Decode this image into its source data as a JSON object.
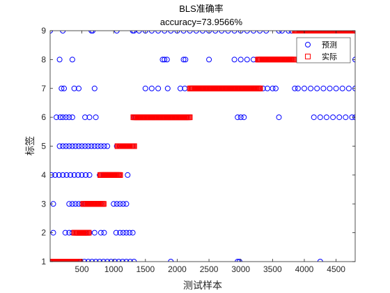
{
  "chart_data": {
    "type": "scatter",
    "title": "BLS准确率",
    "subtitle": "accuracy=73.9566%",
    "xlabel": "测试样本",
    "ylabel": "标签",
    "xlim": [
      1,
      4800
    ],
    "ylim": [
      1,
      9
    ],
    "xticks": [
      500,
      1000,
      1500,
      2000,
      2500,
      3000,
      3500,
      4000,
      4500
    ],
    "yticks": [
      1,
      2,
      3,
      4,
      5,
      6,
      7,
      8,
      9
    ],
    "legend": {
      "placement": "top-right",
      "entries": [
        "预测",
        "实际"
      ]
    },
    "grid": false,
    "series": [
      {
        "name": "预测",
        "marker": "circle",
        "color": "#0000ff",
        "points": [
          [
            1,
            9
          ],
          [
            200,
            9
          ],
          [
            650,
            9
          ],
          [
            670,
            9
          ],
          [
            1050,
            9
          ],
          [
            1300,
            9
          ],
          [
            1320,
            9
          ],
          [
            1400,
            9
          ],
          [
            1500,
            9
          ],
          [
            1600,
            9
          ],
          [
            1700,
            9
          ],
          [
            1800,
            9
          ],
          [
            1900,
            9
          ],
          [
            2000,
            9
          ],
          [
            2100,
            9
          ],
          [
            2200,
            9
          ],
          [
            2300,
            9
          ],
          [
            2400,
            9
          ],
          [
            2500,
            9
          ],
          [
            2600,
            9
          ],
          [
            2700,
            9
          ],
          [
            2800,
            9
          ],
          [
            2900,
            9
          ],
          [
            3000,
            9
          ],
          [
            3100,
            9
          ],
          [
            3200,
            9
          ],
          [
            3300,
            9
          ],
          [
            3400,
            9
          ],
          [
            3600,
            9
          ],
          [
            3650,
            9
          ],
          [
            3750,
            9
          ],
          [
            3800,
            9
          ],
          [
            4500,
            9
          ],
          [
            4600,
            9
          ],
          [
            4700,
            9
          ],
          [
            4800,
            9
          ],
          [
            150,
            8
          ],
          [
            350,
            8
          ],
          [
            1770,
            8
          ],
          [
            1800,
            8
          ],
          [
            1840,
            8
          ],
          [
            2100,
            8
          ],
          [
            2130,
            8
          ],
          [
            2500,
            8
          ],
          [
            2900,
            8
          ],
          [
            3000,
            8
          ],
          [
            3100,
            8
          ],
          [
            3200,
            8
          ],
          [
            3300,
            8
          ],
          [
            3750,
            8
          ],
          [
            3800,
            8
          ],
          [
            4450,
            8
          ],
          [
            4500,
            8
          ],
          [
            4550,
            8
          ],
          [
            4650,
            8
          ],
          [
            4800,
            8
          ],
          [
            180,
            7
          ],
          [
            220,
            7
          ],
          [
            380,
            7
          ],
          [
            450,
            7
          ],
          [
            700,
            7
          ],
          [
            1500,
            7
          ],
          [
            1600,
            7
          ],
          [
            1700,
            7
          ],
          [
            1850,
            7
          ],
          [
            2050,
            7
          ],
          [
            2120,
            7
          ],
          [
            3050,
            7
          ],
          [
            3200,
            7
          ],
          [
            3300,
            7
          ],
          [
            3350,
            7
          ],
          [
            3420,
            7
          ],
          [
            3500,
            7
          ],
          [
            3550,
            7
          ],
          [
            3850,
            7
          ],
          [
            3900,
            7
          ],
          [
            4000,
            7
          ],
          [
            4100,
            7
          ],
          [
            4200,
            7
          ],
          [
            4300,
            7
          ],
          [
            4400,
            7
          ],
          [
            4500,
            7
          ],
          [
            4600,
            7
          ],
          [
            4700,
            7
          ],
          [
            4800,
            7
          ],
          [
            100,
            6
          ],
          [
            160,
            6
          ],
          [
            200,
            6
          ],
          [
            250,
            6
          ],
          [
            300,
            6
          ],
          [
            350,
            6
          ],
          [
            550,
            6
          ],
          [
            620,
            6
          ],
          [
            720,
            6
          ],
          [
            1330,
            6
          ],
          [
            1350,
            6
          ],
          [
            1400,
            6
          ],
          [
            2150,
            6
          ],
          [
            2950,
            6
          ],
          [
            3000,
            6
          ],
          [
            3050,
            6
          ],
          [
            3600,
            6
          ],
          [
            4150,
            6
          ],
          [
            4250,
            6
          ],
          [
            4350,
            6
          ],
          [
            4450,
            6
          ],
          [
            4550,
            6
          ],
          [
            4650,
            6
          ],
          [
            4750,
            6
          ],
          [
            4800,
            6
          ],
          [
            150,
            5
          ],
          [
            200,
            5
          ],
          [
            250,
            5
          ],
          [
            300,
            5
          ],
          [
            350,
            5
          ],
          [
            400,
            5
          ],
          [
            450,
            5
          ],
          [
            500,
            5
          ],
          [
            550,
            5
          ],
          [
            600,
            5
          ],
          [
            650,
            5
          ],
          [
            700,
            5
          ],
          [
            750,
            5
          ],
          [
            800,
            5
          ],
          [
            850,
            5
          ],
          [
            900,
            5
          ],
          [
            1050,
            5
          ],
          [
            1100,
            5
          ],
          [
            1150,
            5
          ],
          [
            1200,
            5
          ],
          [
            1250,
            5
          ],
          [
            1300,
            5
          ],
          [
            20,
            4
          ],
          [
            80,
            4
          ],
          [
            140,
            4
          ],
          [
            200,
            4
          ],
          [
            260,
            4
          ],
          [
            320,
            4
          ],
          [
            380,
            4
          ],
          [
            440,
            4
          ],
          [
            500,
            4
          ],
          [
            560,
            4
          ],
          [
            620,
            4
          ],
          [
            780,
            4
          ],
          [
            840,
            4
          ],
          [
            900,
            4
          ],
          [
            960,
            4
          ],
          [
            1020,
            4
          ],
          [
            1080,
            4
          ],
          [
            1220,
            4
          ],
          [
            50,
            3
          ],
          [
            300,
            3
          ],
          [
            350,
            3
          ],
          [
            400,
            3
          ],
          [
            450,
            3
          ],
          [
            500,
            3
          ],
          [
            550,
            3
          ],
          [
            600,
            3
          ],
          [
            650,
            3
          ],
          [
            700,
            3
          ],
          [
            750,
            3
          ],
          [
            800,
            3
          ],
          [
            1000,
            3
          ],
          [
            1050,
            3
          ],
          [
            1100,
            3
          ],
          [
            1150,
            3
          ],
          [
            1200,
            3
          ],
          [
            50,
            2
          ],
          [
            240,
            2
          ],
          [
            300,
            2
          ],
          [
            350,
            2
          ],
          [
            420,
            2
          ],
          [
            470,
            2
          ],
          [
            560,
            2
          ],
          [
            620,
            2
          ],
          [
            700,
            2
          ],
          [
            800,
            2
          ],
          [
            850,
            2
          ],
          [
            1040,
            2
          ],
          [
            1100,
            2
          ],
          [
            1150,
            2
          ],
          [
            1200,
            2
          ],
          [
            1250,
            2
          ],
          [
            1300,
            2
          ],
          [
            1,
            1
          ],
          [
            60,
            1
          ],
          [
            120,
            1
          ],
          [
            180,
            1
          ],
          [
            240,
            1
          ],
          [
            300,
            1
          ],
          [
            360,
            1
          ],
          [
            420,
            1
          ],
          [
            480,
            1
          ],
          [
            540,
            1
          ],
          [
            600,
            1
          ],
          [
            660,
            1
          ],
          [
            720,
            1
          ],
          [
            780,
            1
          ],
          [
            840,
            1
          ],
          [
            900,
            1
          ],
          [
            960,
            1
          ],
          [
            1020,
            1
          ],
          [
            1080,
            1
          ],
          [
            1140,
            1
          ],
          [
            1200,
            1
          ],
          [
            1260,
            1
          ],
          [
            1320,
            1
          ],
          [
            1900,
            1
          ],
          [
            2950,
            1
          ],
          [
            2980,
            1
          ],
          [
            4250,
            1
          ]
        ]
      },
      {
        "name": "实际",
        "marker": "square",
        "color": "#ff0000",
        "runs": [
          {
            "label": 1,
            "x_start": 1,
            "x_end": 480
          },
          {
            "label": 2,
            "x_start": 380,
            "x_end": 610
          },
          {
            "label": 3,
            "x_start": 520,
            "x_end": 850
          },
          {
            "label": 4,
            "x_start": 790,
            "x_end": 1110
          },
          {
            "label": 5,
            "x_start": 1060,
            "x_end": 1330
          },
          {
            "label": 6,
            "x_start": 1310,
            "x_end": 2200
          },
          {
            "label": 7,
            "x_start": 2200,
            "x_end": 3310
          },
          {
            "label": 8,
            "x_start": 3270,
            "x_end": 3850
          },
          {
            "label": 9,
            "x_start": 3850,
            "x_end": 4800
          }
        ]
      }
    ]
  }
}
